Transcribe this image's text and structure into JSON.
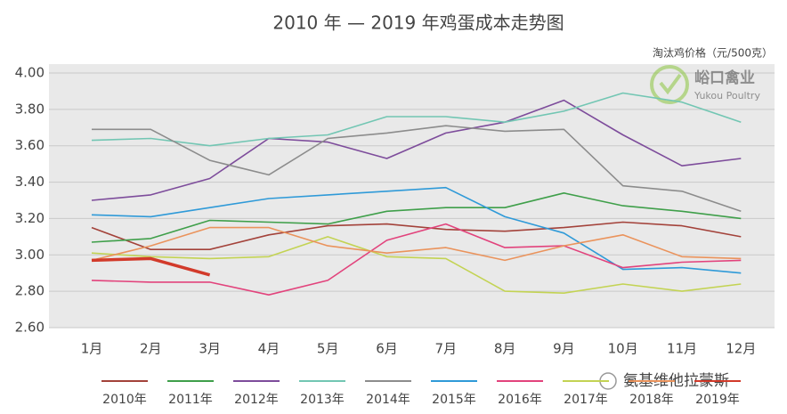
{
  "chart_data": {
    "type": "line",
    "title": "2010 年 — 2019 年鸡蛋成本走势图",
    "unit_label": "淘汰鸡价格（元/500克）",
    "watermark": [
      "峪口禽业",
      "Yukou Poultry"
    ],
    "footer_text": "氨基维他拉蒙斯",
    "categories": [
      "1月",
      "2月",
      "3月",
      "4月",
      "5月",
      "6月",
      "7月",
      "8月",
      "9月",
      "10月",
      "11月",
      "12月"
    ],
    "ylim": [
      2.6,
      4.0
    ],
    "yticks": [
      {
        "value": 2.6,
        "label": "2.60"
      },
      {
        "value": 2.8,
        "label": "2.80"
      },
      {
        "value": 3.0,
        "label": "3.00"
      },
      {
        "value": 3.2,
        "label": "3.20"
      },
      {
        "value": 3.4,
        "label": "3.40"
      },
      {
        "value": 3.6,
        "label": "3.60"
      },
      {
        "value": 3.8,
        "label": "3.80"
      },
      {
        "value": 4.0,
        "label": "4.00"
      }
    ],
    "grid": true,
    "series": [
      {
        "name": "2010年",
        "color": "#a3423a",
        "values": [
          3.15,
          3.03,
          3.03,
          3.11,
          3.16,
          3.17,
          3.14,
          3.13,
          3.15,
          3.18,
          3.16,
          3.1
        ]
      },
      {
        "name": "2011年",
        "color": "#3f9f4a",
        "values": [
          3.07,
          3.09,
          3.19,
          3.18,
          3.17,
          3.24,
          3.26,
          3.26,
          3.34,
          3.27,
          3.24,
          3.2
        ]
      },
      {
        "name": "2012年",
        "color": "#7d4c9b",
        "values": [
          3.3,
          3.33,
          3.42,
          3.64,
          3.62,
          3.53,
          3.67,
          3.73,
          3.85,
          3.66,
          3.49,
          3.53
        ]
      },
      {
        "name": "2013年",
        "color": "#72c6b3",
        "values": [
          3.63,
          3.64,
          3.6,
          3.64,
          3.66,
          3.76,
          3.76,
          3.73,
          3.79,
          3.89,
          3.84,
          3.73
        ]
      },
      {
        "name": "2014年",
        "color": "#8c8c8c",
        "values": [
          3.69,
          3.69,
          3.52,
          3.44,
          3.64,
          3.67,
          3.71,
          3.68,
          3.69,
          3.38,
          3.35,
          3.24
        ]
      },
      {
        "name": "2015年",
        "color": "#2f9ad8",
        "values": [
          3.22,
          3.21,
          3.26,
          3.31,
          3.33,
          3.35,
          3.37,
          3.21,
          3.12,
          2.92,
          2.93,
          2.9
        ]
      },
      {
        "name": "2016年",
        "color": "#e2437c",
        "values": [
          2.86,
          2.85,
          2.85,
          2.78,
          2.86,
          3.08,
          3.17,
          3.04,
          3.05,
          2.93,
          2.96,
          2.97
        ]
      },
      {
        "name": "2017年",
        "color": "#c3d353",
        "values": [
          3.01,
          2.99,
          2.98,
          2.99,
          3.1,
          2.99,
          2.98,
          2.8,
          2.79,
          2.84,
          2.8,
          2.84
        ]
      },
      {
        "name": "2018年",
        "color": "#ea935c",
        "values": [
          2.97,
          3.05,
          3.15,
          3.15,
          3.05,
          3.01,
          3.04,
          2.97,
          3.05,
          3.11,
          2.99,
          2.98
        ]
      },
      {
        "name": "2019年",
        "color": "#d23a2a",
        "values": [
          2.97,
          2.98,
          2.89,
          null,
          null,
          null,
          null,
          null,
          null,
          null,
          null,
          null
        ]
      }
    ]
  }
}
